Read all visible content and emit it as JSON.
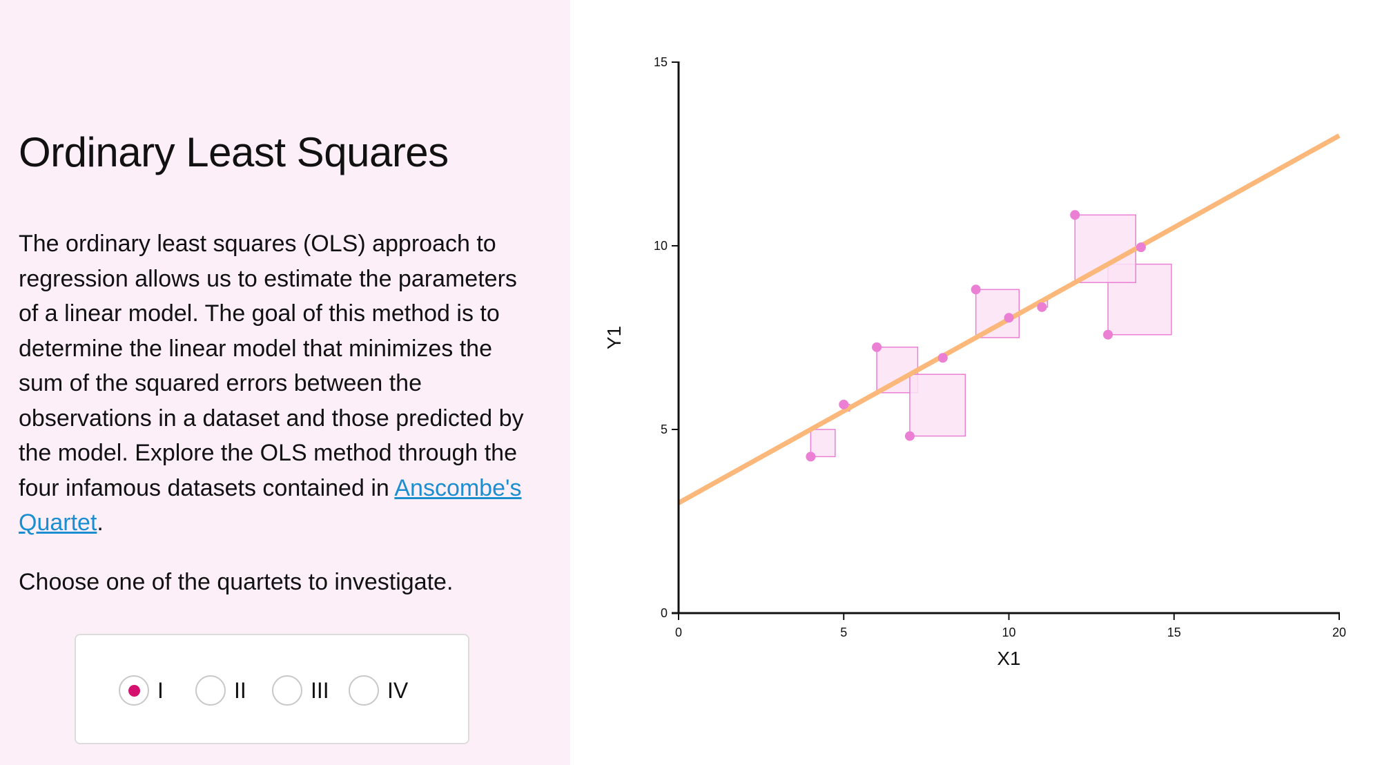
{
  "title": "Ordinary Least Squares",
  "description": {
    "text_before_link": "The ordinary least squares (OLS) approach to regression allows us to estimate the parameters of a linear model. The goal of this method is to determine the linear model that minimizes the sum of the squared errors between the observations in a dataset and those predicted by the model. Explore the OLS method through the four infamous datasets contained in ",
    "link_text": "Anscombe's Quartet",
    "text_after_link": "."
  },
  "prompt": "Choose one of the quartets to investigate.",
  "quartet_selector": {
    "selected": "I",
    "options": [
      {
        "label": "I"
      },
      {
        "label": "II"
      },
      {
        "label": "III"
      },
      {
        "label": "IV"
      }
    ]
  },
  "colors": {
    "panel_background": "#fdeff8",
    "radio_selected": "#d4116e",
    "link": "#1a8ed1",
    "regression_line": "#fbb87a",
    "points": "#ea7fd4",
    "squares_fill": "#fbe3f4",
    "squares_stroke": "#ea7fd4"
  },
  "chart_data": {
    "type": "scatter",
    "xlabel": "X1",
    "ylabel": "Y1",
    "xlim": [
      0,
      20
    ],
    "ylim": [
      0,
      15
    ],
    "x_ticks": [
      0,
      5,
      10,
      15,
      20
    ],
    "y_ticks": [
      0,
      5,
      10,
      15
    ],
    "points": [
      {
        "x": 10,
        "y": 8.04
      },
      {
        "x": 8,
        "y": 6.95
      },
      {
        "x": 13,
        "y": 7.58
      },
      {
        "x": 9,
        "y": 8.81
      },
      {
        "x": 11,
        "y": 8.33
      },
      {
        "x": 14,
        "y": 9.96
      },
      {
        "x": 6,
        "y": 7.24
      },
      {
        "x": 4,
        "y": 4.26
      },
      {
        "x": 12,
        "y": 10.84
      },
      {
        "x": 7,
        "y": 4.82
      },
      {
        "x": 5,
        "y": 5.68
      }
    ],
    "regression_line": {
      "intercept": 3.0,
      "slope": 0.5
    },
    "squared_residuals_shown": true,
    "grid": false
  }
}
